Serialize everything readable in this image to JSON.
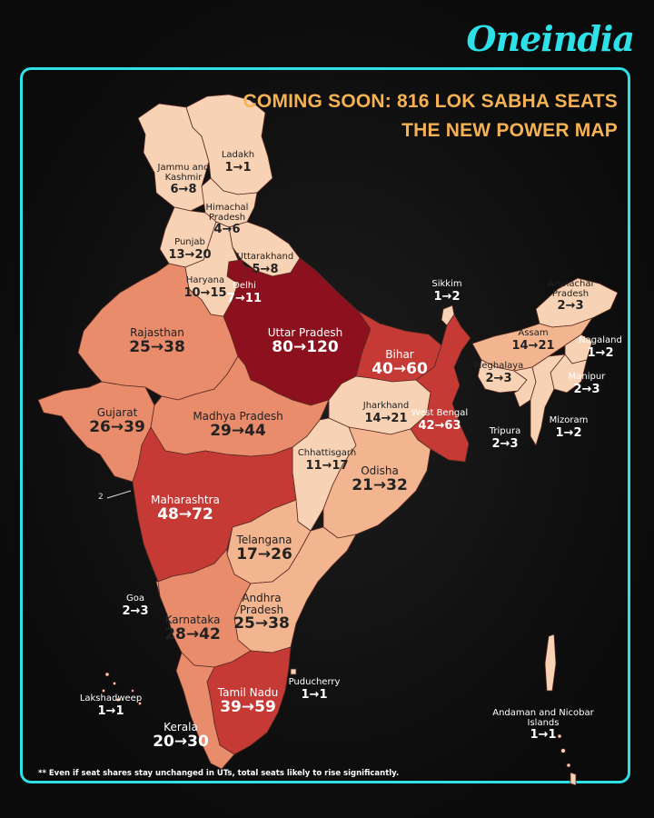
{
  "brand": {
    "name": "Oneindia",
    "color": "#2ee0e8"
  },
  "headline": {
    "line1": "COMING SOON: 816 LOK SABHA SEATS",
    "line2": "THE NEW POWER MAP",
    "color": "#f5b255"
  },
  "footnote": "** Even if seat shares stay unchanged in UTs, total seats likely to rise significantly.",
  "map_marker": "2",
  "colors": {
    "lightest": "#f8d2b4",
    "light": "#f3b58f",
    "medium": "#e98c6b",
    "dark": "#c63a36",
    "darkest": "#8c101d"
  },
  "regions": [
    {
      "key": "ladakh",
      "name": "Ladakh",
      "seats": "1→1",
      "shade": "lightest"
    },
    {
      "key": "jk",
      "name": "Jammu and Kashmir",
      "seats": "6→8",
      "shade": "lightest"
    },
    {
      "key": "hp",
      "name": "Himachal Pradesh",
      "seats": "4→6",
      "shade": "lightest"
    },
    {
      "key": "punjab",
      "name": "Punjab",
      "seats": "13→20",
      "shade": "lightest"
    },
    {
      "key": "uttarakhand",
      "name": "Uttarakhand",
      "seats": "5→8",
      "shade": "lightest"
    },
    {
      "key": "haryana",
      "name": "Haryana",
      "seats": "10→15",
      "shade": "lightest"
    },
    {
      "key": "delhi",
      "name": "Delhi",
      "seats": "7→11",
      "shade": "darkest"
    },
    {
      "key": "up",
      "name": "Uttar Pradesh",
      "seats": "80→120",
      "shade": "darkest"
    },
    {
      "key": "rajasthan",
      "name": "Rajasthan",
      "seats": "25→38",
      "shade": "medium"
    },
    {
      "key": "gujarat",
      "name": "Gujarat",
      "seats": "26→39",
      "shade": "medium"
    },
    {
      "key": "mp",
      "name": "Madhya Pradesh",
      "seats": "29→44",
      "shade": "medium"
    },
    {
      "key": "bihar",
      "name": "Bihar",
      "seats": "40→60",
      "shade": "dark"
    },
    {
      "key": "jharkhand",
      "name": "Jharkhand",
      "seats": "14→21",
      "shade": "lightest"
    },
    {
      "key": "wb",
      "name": "West Bengal",
      "seats": "42→63",
      "shade": "dark"
    },
    {
      "key": "chhattisgarh",
      "name": "Chhattisgarh",
      "seats": "11→17",
      "shade": "lightest"
    },
    {
      "key": "odisha",
      "name": "Odisha",
      "seats": "21→32",
      "shade": "light"
    },
    {
      "key": "maharashtra",
      "name": "Maharashtra",
      "seats": "48→72",
      "shade": "dark"
    },
    {
      "key": "telangana",
      "name": "Telangana",
      "seats": "17→26",
      "shade": "light"
    },
    {
      "key": "ap",
      "name": "Andhra Pradesh",
      "seats": "25→38",
      "shade": "light"
    },
    {
      "key": "goa",
      "name": "Goa",
      "seats": "2→3",
      "shade": "lightest"
    },
    {
      "key": "karnataka",
      "name": "Karnataka",
      "seats": "28→42",
      "shade": "medium"
    },
    {
      "key": "tn",
      "name": "Tamil Nadu",
      "seats": "39→59",
      "shade": "dark"
    },
    {
      "key": "kerala",
      "name": "Kerala",
      "seats": "20→30",
      "shade": "medium"
    },
    {
      "key": "puducherry",
      "name": "Puducherry",
      "seats": "1→1",
      "shade": "lightest"
    },
    {
      "key": "lakshadweep",
      "name": "Lakshadweep",
      "seats": "1→1",
      "shade": "lightest"
    },
    {
      "key": "sikkim",
      "name": "Sikkim",
      "seats": "1→2",
      "shade": "lightest"
    },
    {
      "key": "arunachal",
      "name": "Arunachal Pradesh",
      "seats": "2→3",
      "shade": "lightest"
    },
    {
      "key": "assam",
      "name": "Assam",
      "seats": "14→21",
      "shade": "light"
    },
    {
      "key": "meghalaya",
      "name": "Meghalaya",
      "seats": "2→3",
      "shade": "lightest"
    },
    {
      "key": "nagaland",
      "name": "Nagaland",
      "seats": "1→2",
      "shade": "lightest"
    },
    {
      "key": "manipur",
      "name": "Manipur",
      "seats": "2→3",
      "shade": "lightest"
    },
    {
      "key": "tripura",
      "name": "Tripura",
      "seats": "2→3",
      "shade": "lightest"
    },
    {
      "key": "mizoram",
      "name": "Mizoram",
      "seats": "1→2",
      "shade": "lightest"
    },
    {
      "key": "andaman",
      "name": "Andaman and Nicobar Islands",
      "seats": "1→1",
      "shade": "lightest"
    }
  ]
}
